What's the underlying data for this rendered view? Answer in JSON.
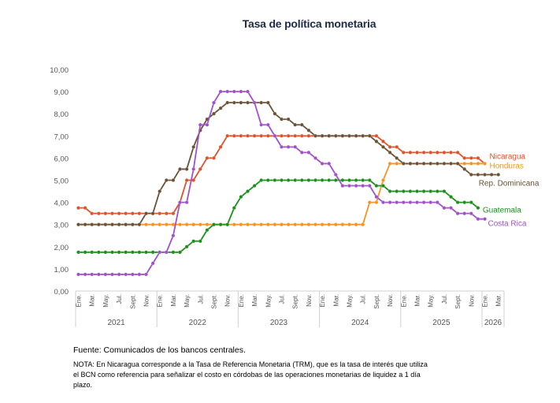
{
  "chart_data": {
    "type": "line",
    "title": "Tasa de política monetaria",
    "xlabel": "",
    "ylabel": "",
    "ylim": [
      0,
      10
    ],
    "y_ticks": [
      "0,00",
      "1,00",
      "2,00",
      "3,00",
      "4,00",
      "5,00",
      "6,00",
      "7,00",
      "8,00",
      "9,00",
      "10,00"
    ],
    "x_start": "Ene. 2021",
    "x_frequency": "monthly",
    "month_tick_labels": [
      "Ene.",
      "Mar.",
      "May.",
      "Jul.",
      "Sept.",
      "Nov."
    ],
    "years": [
      {
        "label": "2021",
        "months": 12
      },
      {
        "label": "2022",
        "months": 12
      },
      {
        "label": "2023",
        "months": 12
      },
      {
        "label": "2024",
        "months": 12
      },
      {
        "label": "2025",
        "months": 12
      },
      {
        "label": "2026",
        "months": 3,
        "tick_labels": [
          "Ene.",
          "Mar."
        ]
      }
    ],
    "grid": false,
    "series": [
      {
        "name": "Nicaragua",
        "color": "#e0502a",
        "values": [
          3.75,
          3.75,
          3.5,
          3.5,
          3.5,
          3.5,
          3.5,
          3.5,
          3.5,
          3.5,
          3.5,
          3.5,
          3.5,
          3.5,
          3.5,
          4.0,
          5.0,
          5.0,
          5.5,
          6.0,
          6.0,
          6.5,
          7,
          7,
          7,
          7,
          7,
          7,
          7,
          7,
          7,
          7,
          7,
          7,
          7,
          7,
          7,
          7,
          7,
          7,
          7,
          7,
          7,
          7,
          7,
          6.75,
          6.5,
          6.5,
          6.25,
          6.25,
          6.25,
          6.25,
          6.25,
          6.25,
          6.25,
          6.25,
          6.25,
          6.0,
          6.0,
          6.0,
          5.75
        ]
      },
      {
        "name": "Honduras",
        "color": "#f7931e",
        "values": [
          3,
          3,
          3,
          3,
          3,
          3,
          3,
          3,
          3,
          3,
          3,
          3,
          3,
          3,
          3,
          3,
          3,
          3,
          3,
          3,
          3,
          3,
          3,
          3,
          3,
          3,
          3,
          3,
          3,
          3,
          3,
          3,
          3,
          3,
          3,
          3,
          3,
          3,
          3,
          3,
          3,
          3,
          3,
          4.0,
          4.0,
          5.0,
          5.75,
          5.75,
          5.75,
          5.75,
          5.75,
          5.75,
          5.75,
          5.75,
          5.75,
          5.75,
          5.75,
          5.75,
          5.75,
          5.75,
          5.75
        ]
      },
      {
        "name": "Rep. Dominicana",
        "color": "#6b5136",
        "values": [
          3,
          3,
          3,
          3,
          3,
          3,
          3,
          3,
          3,
          3,
          3.5,
          3.5,
          4.5,
          5.0,
          5.0,
          5.5,
          5.5,
          6.5,
          7.25,
          7.75,
          8.0,
          8.25,
          8.5,
          8.5,
          8.5,
          8.5,
          8.5,
          8.5,
          8.5,
          8.0,
          7.75,
          7.75,
          7.5,
          7.5,
          7.25,
          7,
          7,
          7,
          7,
          7,
          7,
          7,
          7,
          7,
          6.75,
          6.5,
          6.25,
          6.0,
          5.75,
          5.75,
          5.75,
          5.75,
          5.75,
          5.75,
          5.75,
          5.75,
          5.75,
          5.5,
          5.25,
          5.25,
          5.25,
          5.25,
          5.25
        ]
      },
      {
        "name": "Guatemala",
        "color": "#1a8f1a",
        "values": [
          1.75,
          1.75,
          1.75,
          1.75,
          1.75,
          1.75,
          1.75,
          1.75,
          1.75,
          1.75,
          1.75,
          1.75,
          1.75,
          1.75,
          1.75,
          1.75,
          2.0,
          2.25,
          2.25,
          2.75,
          3.0,
          3.0,
          3.0,
          3.75,
          4.25,
          4.5,
          4.75,
          5,
          5,
          5,
          5,
          5,
          5,
          5,
          5,
          5,
          5,
          5,
          5,
          5,
          5,
          5,
          5,
          5,
          4.75,
          4.75,
          4.5,
          4.5,
          4.5,
          4.5,
          4.5,
          4.5,
          4.5,
          4.5,
          4.5,
          4.25,
          4.0,
          4.0,
          4.0,
          3.75
        ]
      },
      {
        "name": "Costa Rica",
        "color": "#a050c8",
        "values": [
          0.75,
          0.75,
          0.75,
          0.75,
          0.75,
          0.75,
          0.75,
          0.75,
          0.75,
          0.75,
          0.75,
          1.25,
          1.75,
          1.75,
          2.5,
          4.0,
          4.0,
          5.5,
          7.5,
          7.5,
          8.5,
          9,
          9,
          9,
          9,
          9,
          8.5,
          7.5,
          7.5,
          7.0,
          6.5,
          6.5,
          6.5,
          6.25,
          6.25,
          6.0,
          5.75,
          5.75,
          5.25,
          4.75,
          4.75,
          4.75,
          4.75,
          4.75,
          4.25,
          4,
          4,
          4,
          4,
          4,
          4,
          4,
          4,
          4,
          3.75,
          3.75,
          3.5,
          3.5,
          3.5,
          3.25,
          3.25
        ]
      }
    ]
  },
  "footer": {
    "source": "Fuente: Comunicados de los bancos centrales.",
    "note": "NOTA: En Nicaragua corresponde a la Tasa de Referencia Monetaria (TRM), que es la tasa de interés que utiliza el BCN como referencia para señalizar el costo en córdobas de las operaciones monetarias de liquidez a 1 día plazo."
  }
}
